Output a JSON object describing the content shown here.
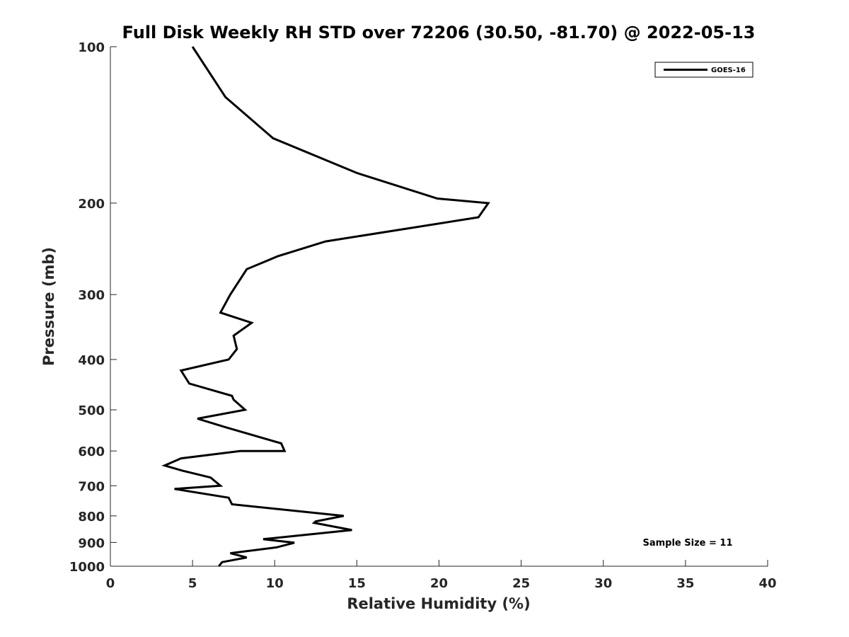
{
  "chart_data": {
    "type": "line",
    "title": "Full Disk Weekly RH STD over 72206 (30.50, -81.70) @ 2022-05-13",
    "xlabel": "Relative Humidity (%)",
    "ylabel": "Pressure (mb)",
    "xlim": [
      0,
      40
    ],
    "ylim": [
      100,
      1000
    ],
    "y_scale": "log",
    "y_reversed": true,
    "x_ticks": [
      0,
      5,
      10,
      15,
      20,
      25,
      30,
      35,
      40
    ],
    "y_ticks": [
      100,
      200,
      300,
      400,
      500,
      600,
      700,
      800,
      900,
      1000
    ],
    "grid": false,
    "legend_position": "top-right",
    "series": [
      {
        "name": "GOES-16",
        "color": "#000000",
        "points": [
          [
            5.0,
            100
          ],
          [
            7.0,
            125
          ],
          [
            9.9,
            150
          ],
          [
            15.0,
            175
          ],
          [
            19.9,
            196
          ],
          [
            23.0,
            200
          ],
          [
            22.4,
            213
          ],
          [
            13.1,
            237
          ],
          [
            10.2,
            253
          ],
          [
            8.3,
            268
          ],
          [
            7.3,
            300
          ],
          [
            6.7,
            325
          ],
          [
            8.6,
            340
          ],
          [
            7.5,
            360
          ],
          [
            7.7,
            382
          ],
          [
            7.2,
            400
          ],
          [
            4.3,
            420
          ],
          [
            4.8,
            445
          ],
          [
            7.4,
            470
          ],
          [
            7.5,
            478
          ],
          [
            8.2,
            500
          ],
          [
            5.3,
            520
          ],
          [
            7.0,
            540
          ],
          [
            10.4,
            580
          ],
          [
            10.6,
            600
          ],
          [
            7.9,
            600
          ],
          [
            4.3,
            620
          ],
          [
            3.3,
            640
          ],
          [
            4.4,
            655
          ],
          [
            6.1,
            675
          ],
          [
            6.7,
            700
          ],
          [
            3.9,
            710
          ],
          [
            7.2,
            738
          ],
          [
            7.4,
            760
          ],
          [
            14.2,
            800
          ],
          [
            12.5,
            820
          ],
          [
            12.4,
            825
          ],
          [
            14.7,
            852
          ],
          [
            9.3,
            887
          ],
          [
            11.2,
            901
          ],
          [
            10.1,
            920
          ],
          [
            7.3,
            944
          ],
          [
            8.3,
            962
          ],
          [
            6.8,
            982
          ],
          [
            6.6,
            1000
          ]
        ]
      }
    ],
    "annotation": "Sample Size = 11"
  }
}
